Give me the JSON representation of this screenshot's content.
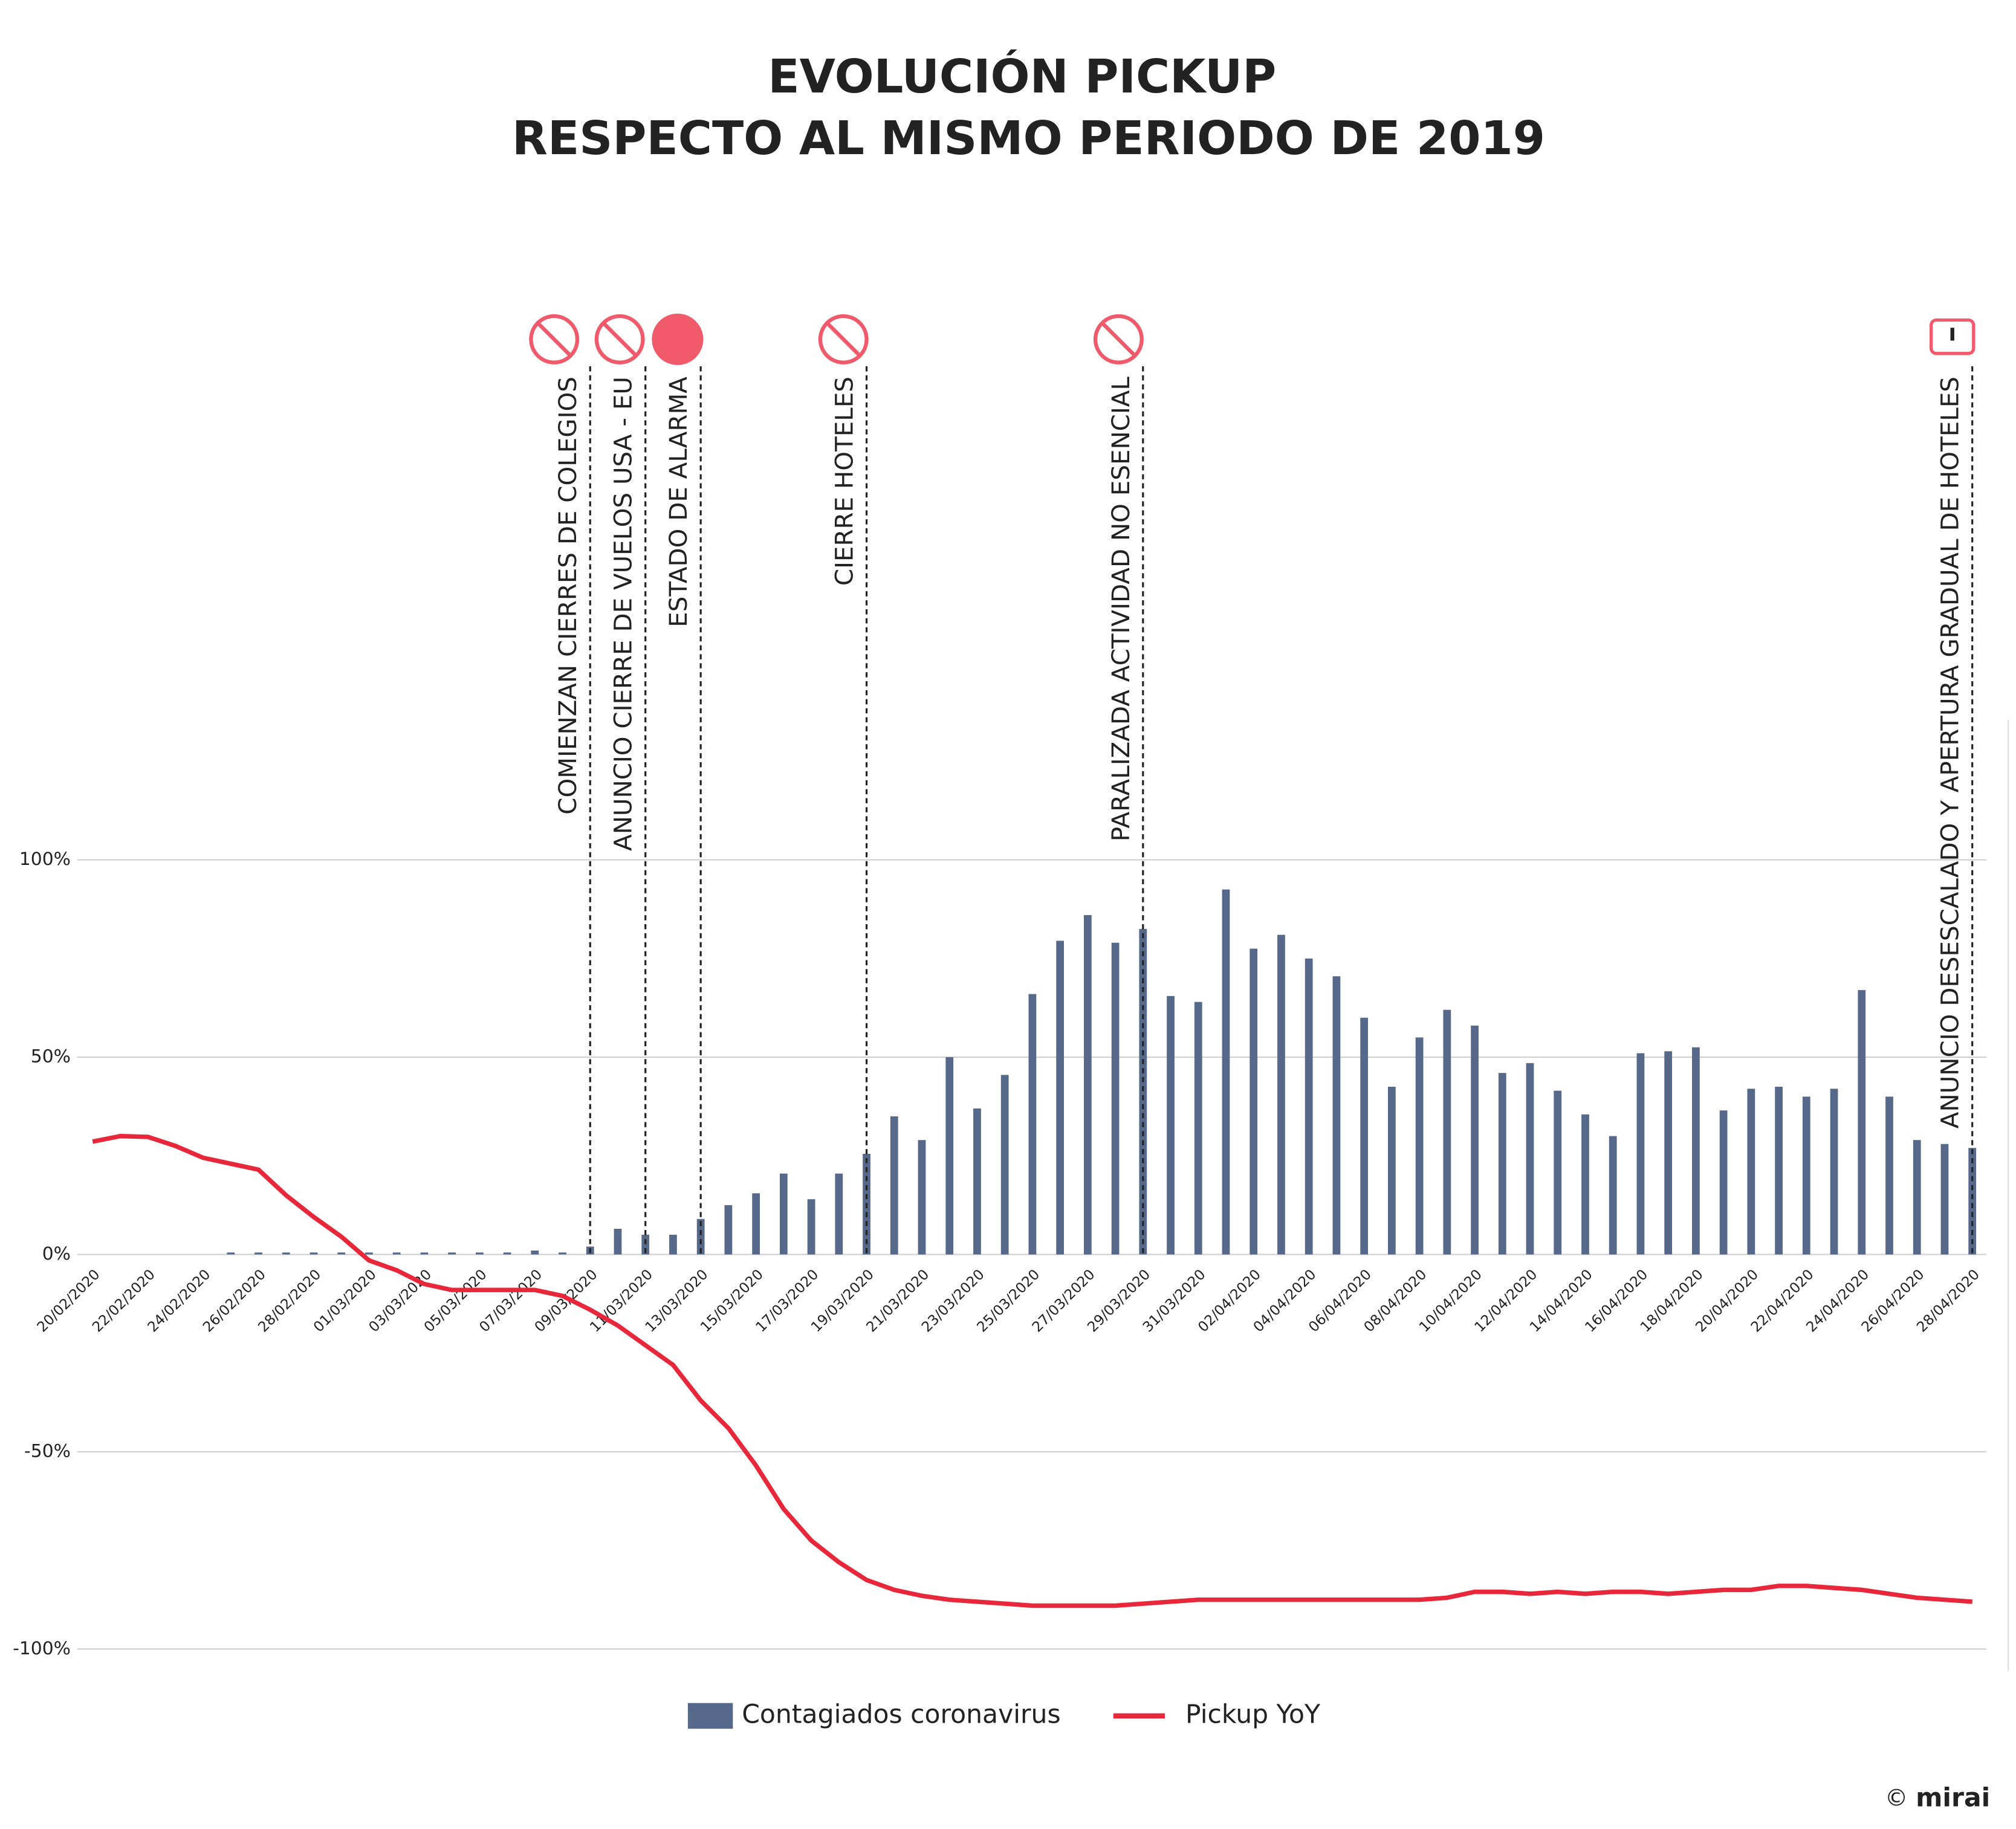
{
  "chart_data": {
    "type": "bar_line",
    "title": [
      "EVOLUCIÓN PICKUP",
      "RESPECTO AL MISMO PERIODO DE 2019"
    ],
    "categories": [
      "20/02/2020",
      null,
      "22/02/2020",
      null,
      "24/02/2020",
      null,
      "26/02/2020",
      null,
      "28/02/2020",
      null,
      "01/03/2020",
      null,
      "03/03/2020",
      null,
      "05/03/2020",
      null,
      "07/03/2020",
      null,
      "09/03/2020",
      null,
      "11/03/2020",
      null,
      "13/03/2020",
      null,
      "15/03/2020",
      null,
      "17/03/2020",
      null,
      "19/03/2020",
      null,
      "21/03/2020",
      null,
      "23/03/2020",
      null,
      "25/03/2020",
      null,
      "27/03/2020",
      null,
      "29/03/2020",
      null,
      "31/03/2020",
      null,
      "02/04/2020",
      null,
      "04/04/2020",
      null,
      "06/04/2020",
      null,
      "08/04/2020",
      null,
      "10/04/2020",
      null,
      "12/04/2020",
      null,
      "14/04/2020",
      null,
      "16/04/2020",
      null,
      "18/04/2020",
      null,
      "20/04/2020",
      null,
      "22/04/2020",
      null,
      "24/04/2020",
      null,
      "26/04/2020",
      null,
      "28/04/2020"
    ],
    "series": [
      {
        "name": "Contagiados coronavirus",
        "color": "#56698a",
        "kind": "bar",
        "values": [
          null,
          null,
          null,
          null,
          null,
          0.5,
          0.5,
          0.5,
          0.5,
          0.5,
          0.5,
          0.5,
          0.5,
          0.5,
          0.5,
          0.5,
          1,
          0.5,
          2,
          6.5,
          5,
          5,
          9,
          12.5,
          15.5,
          20.5,
          14,
          20.5,
          25.5,
          35,
          29,
          50,
          37,
          45.5,
          66,
          79.5,
          86,
          79,
          82.5,
          65.5,
          64,
          92.5,
          77.5,
          81,
          75,
          70.5,
          60,
          42.5,
          55,
          62,
          58,
          46,
          48.5,
          41.5,
          35.5,
          30,
          51,
          51.5,
          52.5,
          36.5,
          42,
          42.5,
          40,
          42,
          67,
          40,
          29,
          28,
          27
        ]
      },
      {
        "name": "Pickup YoY",
        "color": "#e8273a",
        "kind": "line",
        "values": [
          28.6,
          30,
          29.8,
          27.5,
          24.5,
          23,
          21.5,
          15,
          9.5,
          4.5,
          -1.5,
          -4,
          -7.5,
          -9,
          -9,
          -9,
          -9,
          -10.5,
          -14,
          -18,
          -23,
          -28,
          -37,
          -44,
          -53.5,
          -64.5,
          -72.5,
          -78,
          -82.5,
          -85,
          -86.5,
          -87.5,
          -88,
          -88.5,
          -89,
          -89,
          -89,
          -89,
          -88.5,
          -88,
          -87.5,
          -87.5,
          -87.5,
          -87.5,
          -87.5,
          -87.5,
          -87.5,
          -87.5,
          -87.5,
          -87,
          -85.5,
          -85.5,
          -86,
          -85.5,
          -86,
          -85.5,
          -85.5,
          -86,
          -85.5,
          -85,
          -85,
          -84,
          -84,
          -84.5,
          -85,
          -86,
          -87,
          -87.5,
          -88
        ]
      }
    ],
    "ylim": [
      -100,
      100
    ],
    "yticks": [
      {
        "value": -100,
        "label": "-100%"
      },
      {
        "value": -50,
        "label": "-50%"
      },
      {
        "value": 0,
        "label": "0%"
      },
      {
        "value": 50,
        "label": "50%"
      },
      {
        "value": 100,
        "label": "100%"
      }
    ],
    "grid": true,
    "annotations": [
      {
        "x": "09/03/2020",
        "text": "COMIENZAN CIERRES DE COLEGIOS"
      },
      {
        "x": "11/03/2020",
        "text": "ANUNCIO CIERRE DE VUELOS USA - EU"
      },
      {
        "x": "13/03/2020",
        "text": "ESTADO DE ALARMA"
      },
      {
        "x": "19/03/2020",
        "text": "CIERRE HOTELES"
      },
      {
        "x": "29/03/2020",
        "text": "PARALIZADA ACTIVIDAD NO ESENCIAL"
      },
      {
        "x": "28/04/2020",
        "text": "ANUNCIO DESESCALADO Y APERTURA GRADUAL DE HOTELES"
      }
    ],
    "credit_symbol": "©",
    "credit": "mirai"
  }
}
